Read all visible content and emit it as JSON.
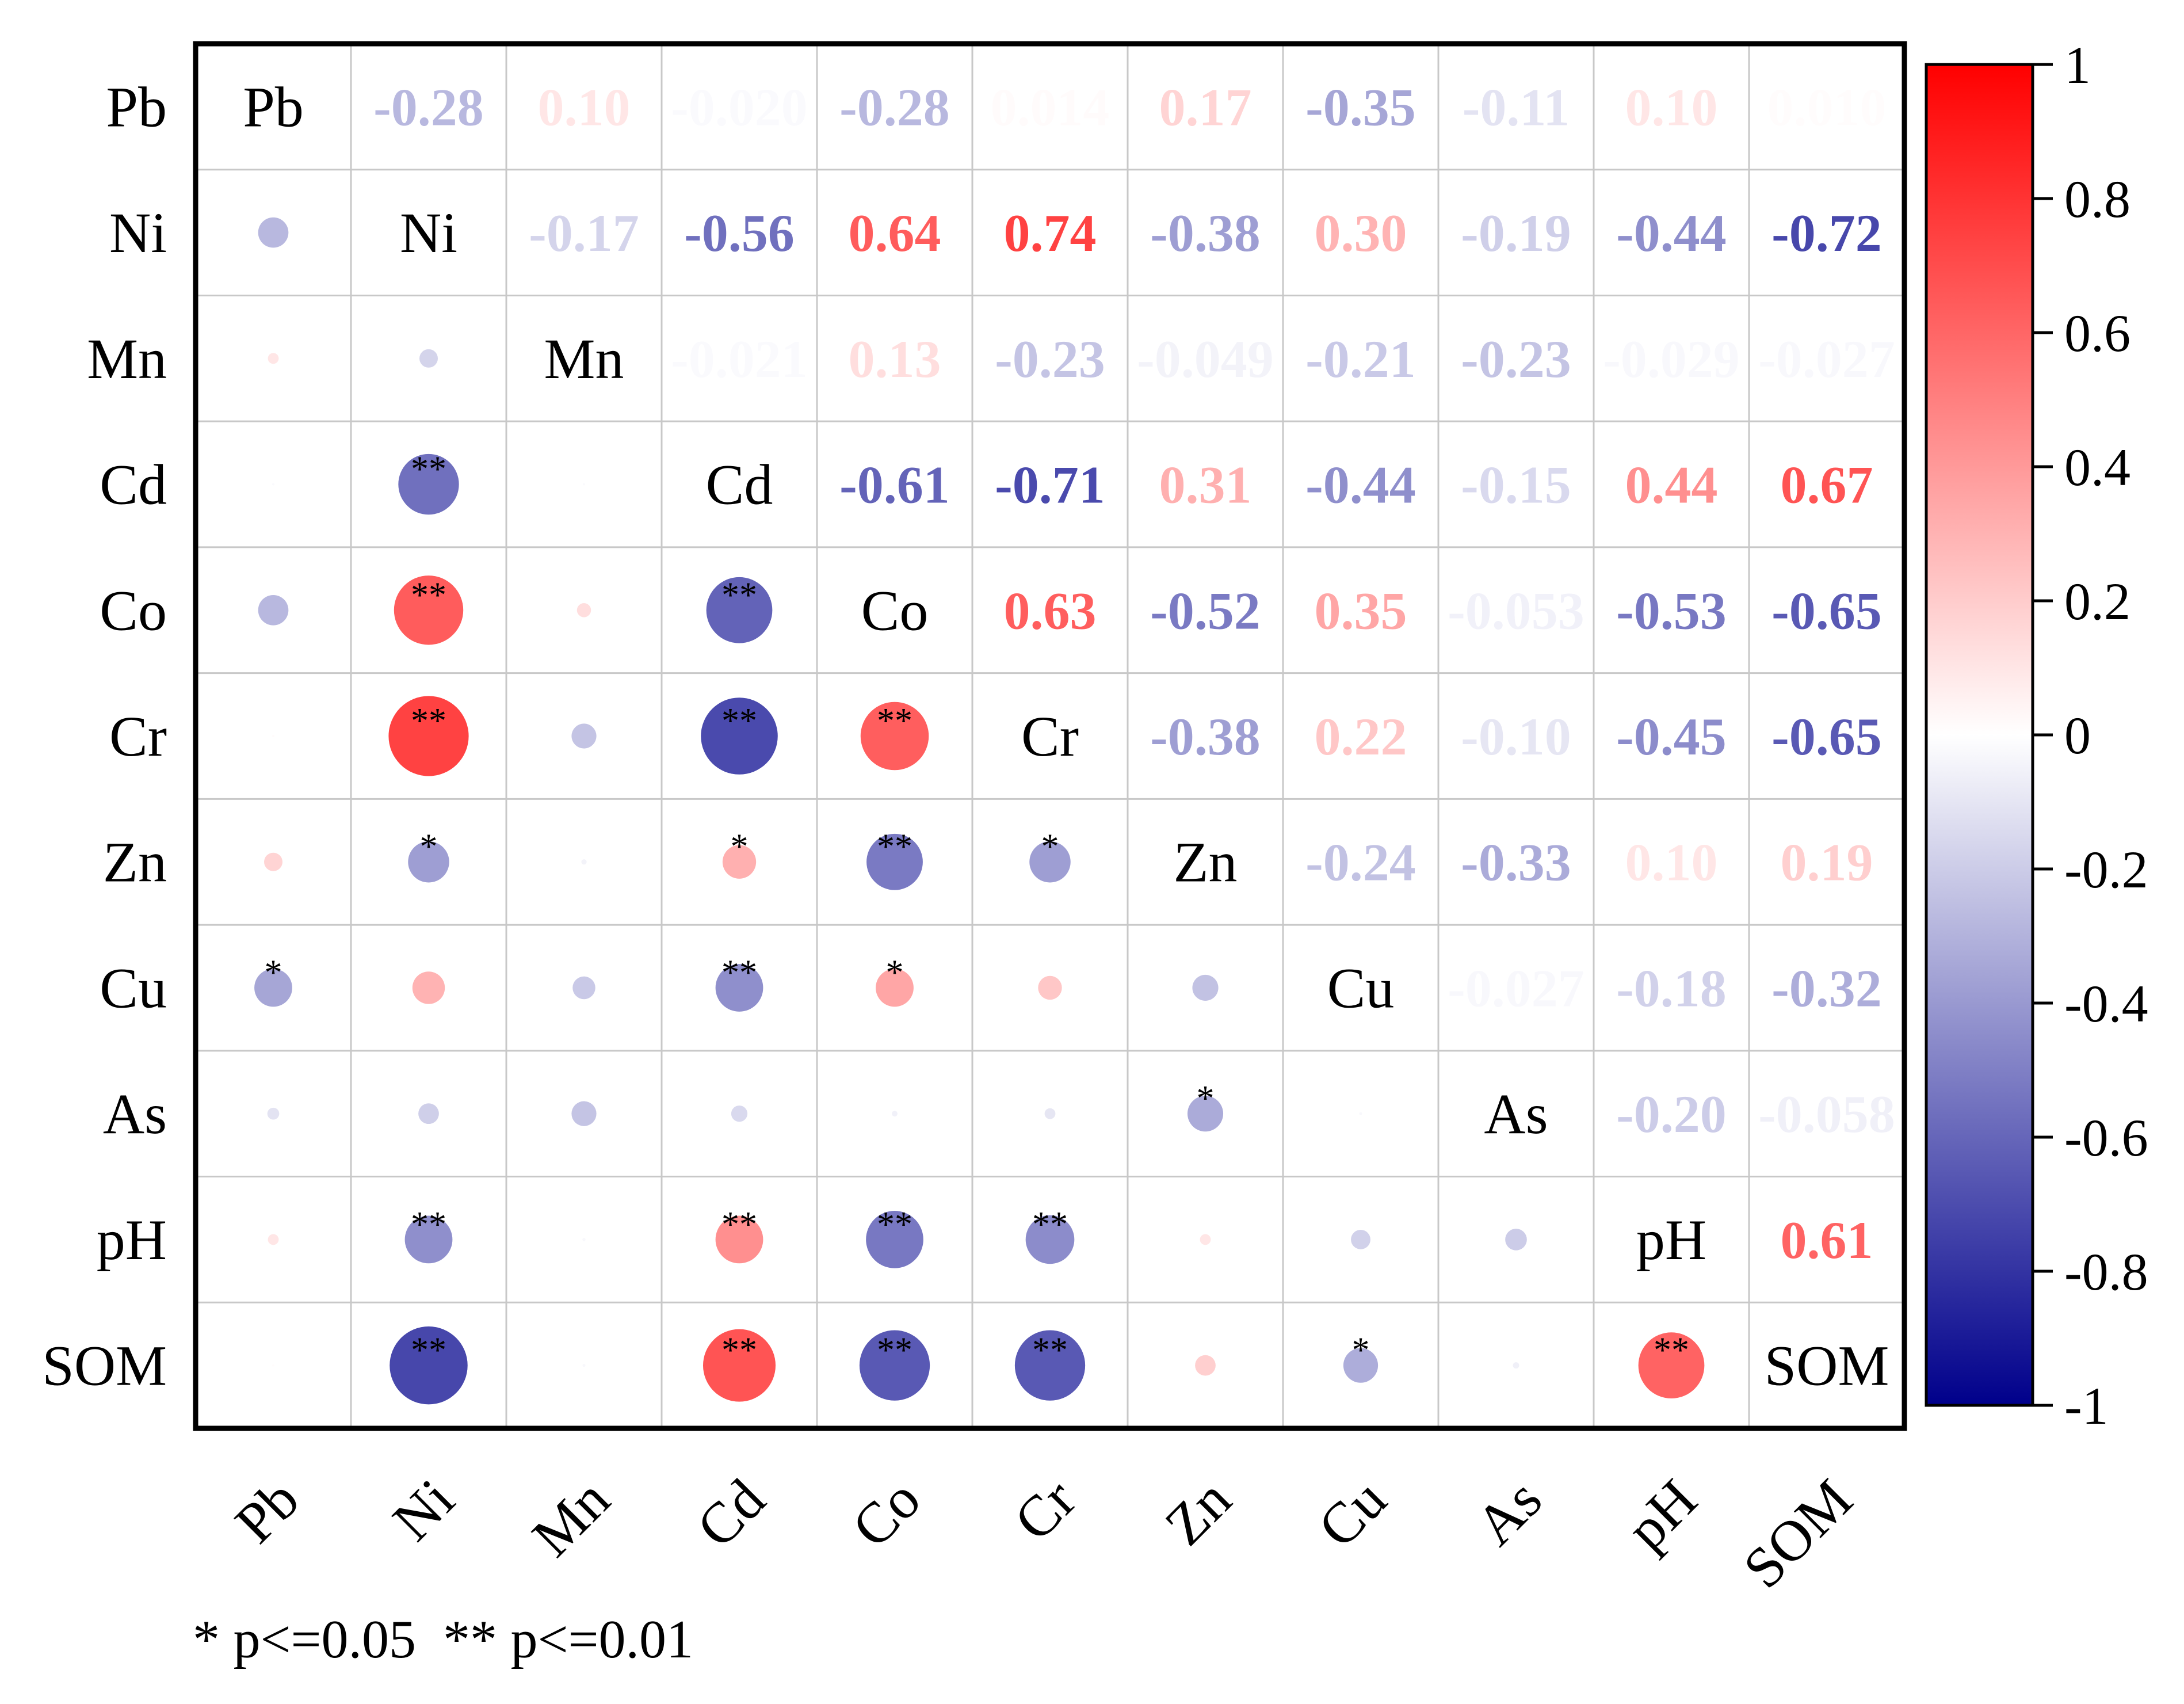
{
  "chart_data": {
    "type": "heatmap",
    "title": "",
    "variables": [
      "Pb",
      "Ni",
      "Mn",
      "Cd",
      "Co",
      "Cr",
      "Zn",
      "Cu",
      "As",
      "pH",
      "SOM"
    ],
    "correlation_matrix": [
      [
        1,
        -0.28,
        0.1,
        -0.02,
        -0.28,
        0.014,
        0.17,
        -0.35,
        -0.11,
        0.1,
        0.01
      ],
      [
        -0.28,
        1,
        -0.17,
        -0.56,
        0.64,
        0.74,
        -0.38,
        0.3,
        -0.19,
        -0.44,
        -0.72
      ],
      [
        0.1,
        -0.17,
        1,
        -0.021,
        0.13,
        -0.23,
        -0.049,
        -0.21,
        -0.23,
        -0.029,
        -0.027
      ],
      [
        -0.02,
        -0.56,
        -0.021,
        1,
        -0.61,
        -0.71,
        0.31,
        -0.44,
        -0.15,
        0.44,
        0.67
      ],
      [
        -0.28,
        0.64,
        0.13,
        -0.61,
        1,
        0.63,
        -0.52,
        0.35,
        -0.053,
        -0.53,
        -0.65
      ],
      [
        0.014,
        0.74,
        -0.23,
        -0.71,
        0.63,
        1,
        -0.38,
        0.22,
        -0.1,
        -0.45,
        -0.65
      ],
      [
        0.17,
        -0.38,
        -0.049,
        0.31,
        -0.52,
        -0.38,
        1,
        -0.24,
        -0.33,
        0.1,
        0.19
      ],
      [
        -0.35,
        0.3,
        -0.21,
        -0.44,
        0.35,
        0.22,
        -0.24,
        1,
        -0.027,
        -0.18,
        -0.32
      ],
      [
        -0.11,
        -0.19,
        -0.23,
        -0.15,
        -0.053,
        -0.1,
        -0.33,
        -0.027,
        1,
        -0.2,
        -0.058
      ],
      [
        0.1,
        -0.44,
        -0.029,
        0.44,
        -0.53,
        -0.45,
        0.1,
        -0.18,
        -0.2,
        1,
        0.61
      ],
      [
        0.01,
        -0.72,
        -0.027,
        0.67,
        -0.65,
        -0.65,
        0.19,
        -0.32,
        -0.058,
        0.61,
        1
      ]
    ],
    "value_labels": [
      [
        "Pb",
        "-0.28",
        "0.10",
        "-0.020",
        "-0.28",
        "0.014",
        "0.17",
        "-0.35",
        "-0.11",
        "0.10",
        "0.010"
      ],
      [
        "",
        "Ni",
        "-0.17",
        "-0.56",
        "0.64",
        "0.74",
        "-0.38",
        "0.30",
        "-0.19",
        "-0.44",
        "-0.72"
      ],
      [
        "",
        "",
        "Mn",
        "-0.021",
        "0.13",
        "-0.23",
        "-0.049",
        "-0.21",
        "-0.23",
        "-0.029",
        "-0.027"
      ],
      [
        "",
        "",
        "",
        "Cd",
        "-0.61",
        "-0.71",
        "0.31",
        "-0.44",
        "-0.15",
        "0.44",
        "0.67"
      ],
      [
        "",
        "",
        "",
        "",
        "Co",
        "0.63",
        "-0.52",
        "0.35",
        "-0.053",
        "-0.53",
        "-0.65"
      ],
      [
        "",
        "",
        "",
        "",
        "",
        "Cr",
        "-0.38",
        "0.22",
        "-0.10",
        "-0.45",
        "-0.65"
      ],
      [
        "",
        "",
        "",
        "",
        "",
        "",
        "Zn",
        "-0.24",
        "-0.33",
        "0.10",
        "0.19"
      ],
      [
        "",
        "",
        "",
        "",
        "",
        "",
        "",
        "Cu",
        "-0.027",
        "-0.18",
        "-0.32"
      ],
      [
        "",
        "",
        "",
        "",
        "",
        "",
        "",
        "",
        "As",
        "-0.20",
        "-0.058"
      ],
      [
        "",
        "",
        "",
        "",
        "",
        "",
        "",
        "",
        "",
        "pH",
        "0.61"
      ],
      [
        "",
        "",
        "",
        "",
        "",
        "",
        "",
        "",
        "",
        "",
        "SOM"
      ]
    ],
    "significance": [
      [
        "",
        "",
        "",
        "",
        "",
        "",
        "",
        "*",
        "",
        "",
        ""
      ],
      [
        "",
        "",
        "",
        "**",
        "**",
        "**",
        "*",
        "",
        "",
        "**",
        "**"
      ],
      [
        "",
        "",
        "",
        "",
        "",
        "",
        "",
        "",
        "",
        "",
        ""
      ],
      [
        "",
        "**",
        "",
        "",
        "**",
        "**",
        "*",
        "**",
        "",
        "**",
        "**"
      ],
      [
        "",
        "**",
        "",
        "**",
        "",
        "**",
        "**",
        "*",
        "",
        "**",
        "**"
      ],
      [
        "",
        "**",
        "",
        "**",
        "**",
        "",
        "*",
        "",
        "",
        "**",
        "**"
      ],
      [
        "",
        "*",
        "",
        "*",
        "**",
        "*",
        "",
        "",
        "*",
        "",
        ""
      ],
      [
        "*",
        "",
        "",
        "**",
        "*",
        "",
        "",
        "",
        "",
        "",
        "*"
      ],
      [
        "",
        "",
        "",
        "",
        "",
        "",
        "*",
        "",
        "",
        "",
        ""
      ],
      [
        "",
        "**",
        "",
        "**",
        "**",
        "**",
        "",
        "",
        "",
        "",
        "**"
      ],
      [
        "",
        "**",
        "",
        "**",
        "**",
        "**",
        "",
        "*",
        "",
        "**",
        ""
      ]
    ],
    "upper_triangle": "numeric values",
    "lower_triangle": "circles",
    "colorbar": {
      "range": [
        -1,
        1
      ],
      "ticks": [
        1,
        0.8,
        0.6,
        0.4,
        0.2,
        0,
        -0.2,
        -0.4,
        -0.6,
        -0.8,
        -1
      ],
      "tick_labels": [
        "1",
        "0.8",
        "0.6",
        "0.4",
        "0.2",
        "0",
        "-0.2",
        "-0.4",
        "-0.6",
        "-0.8",
        "-1"
      ],
      "colors": {
        "positive": "#ff0000",
        "zero": "#ffffff",
        "negative": "#00008b"
      }
    },
    "footnote": "* p<=0.05  ** p<=0.01"
  }
}
